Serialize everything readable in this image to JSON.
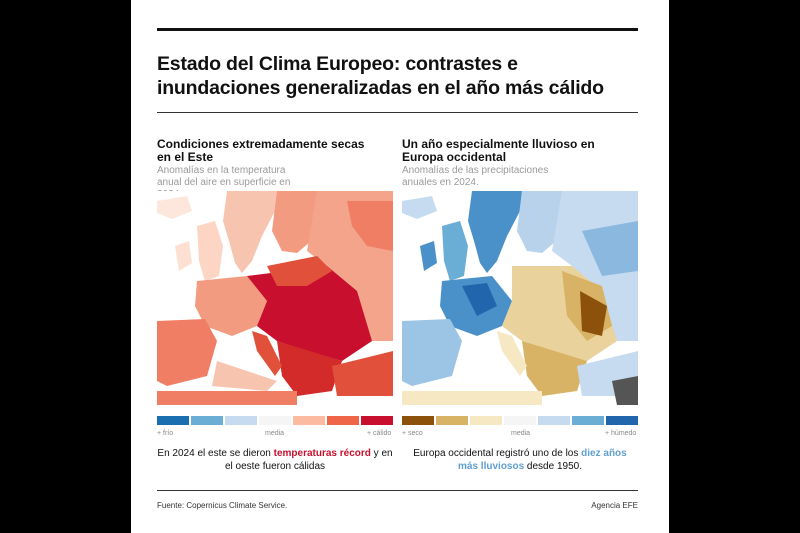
{
  "title": "Estado del Clima Europeo: contrastes e inundaciones generalizadas en el año más cálido",
  "left_panel": {
    "title": "Condiciones extremadamente secas en el Este",
    "subtitle": "Anomalías en la temperatura anual del aire en superficie en 2024",
    "legend": {
      "colors": [
        "#1a6fb0",
        "#6aaed6",
        "#c6dbef",
        "#f5f5f5",
        "#fcbba1",
        "#ef6548",
        "#c8102e"
      ],
      "low": "+ frío",
      "mid": "media",
      "high": "+ cálido"
    },
    "caption_pre": "En 2024 el este se dieron ",
    "caption_hl": "temperaturas récord",
    "caption_post": " y en el oeste fueron cálidas"
  },
  "right_panel": {
    "title": "Un año especialmente lluvioso en Europa occidental",
    "subtitle": "Anomalías de las precipitaciones anuales en 2024.",
    "legend": {
      "colors": [
        "#8c510a",
        "#d8b365",
        "#f6e8c3",
        "#f5f5f5",
        "#c6dbef",
        "#6aaed6",
        "#2166ac"
      ],
      "low": "+ seco",
      "mid": "media",
      "high": "+ húmedo"
    },
    "caption_pre": "Europa occidental registró uno de los ",
    "caption_hl": "diez años más lluviosos",
    "caption_post": " desde 1950."
  },
  "footer": {
    "source": "Fuente: Copernicus Climate Service.",
    "agency": "Agencia EFE"
  }
}
